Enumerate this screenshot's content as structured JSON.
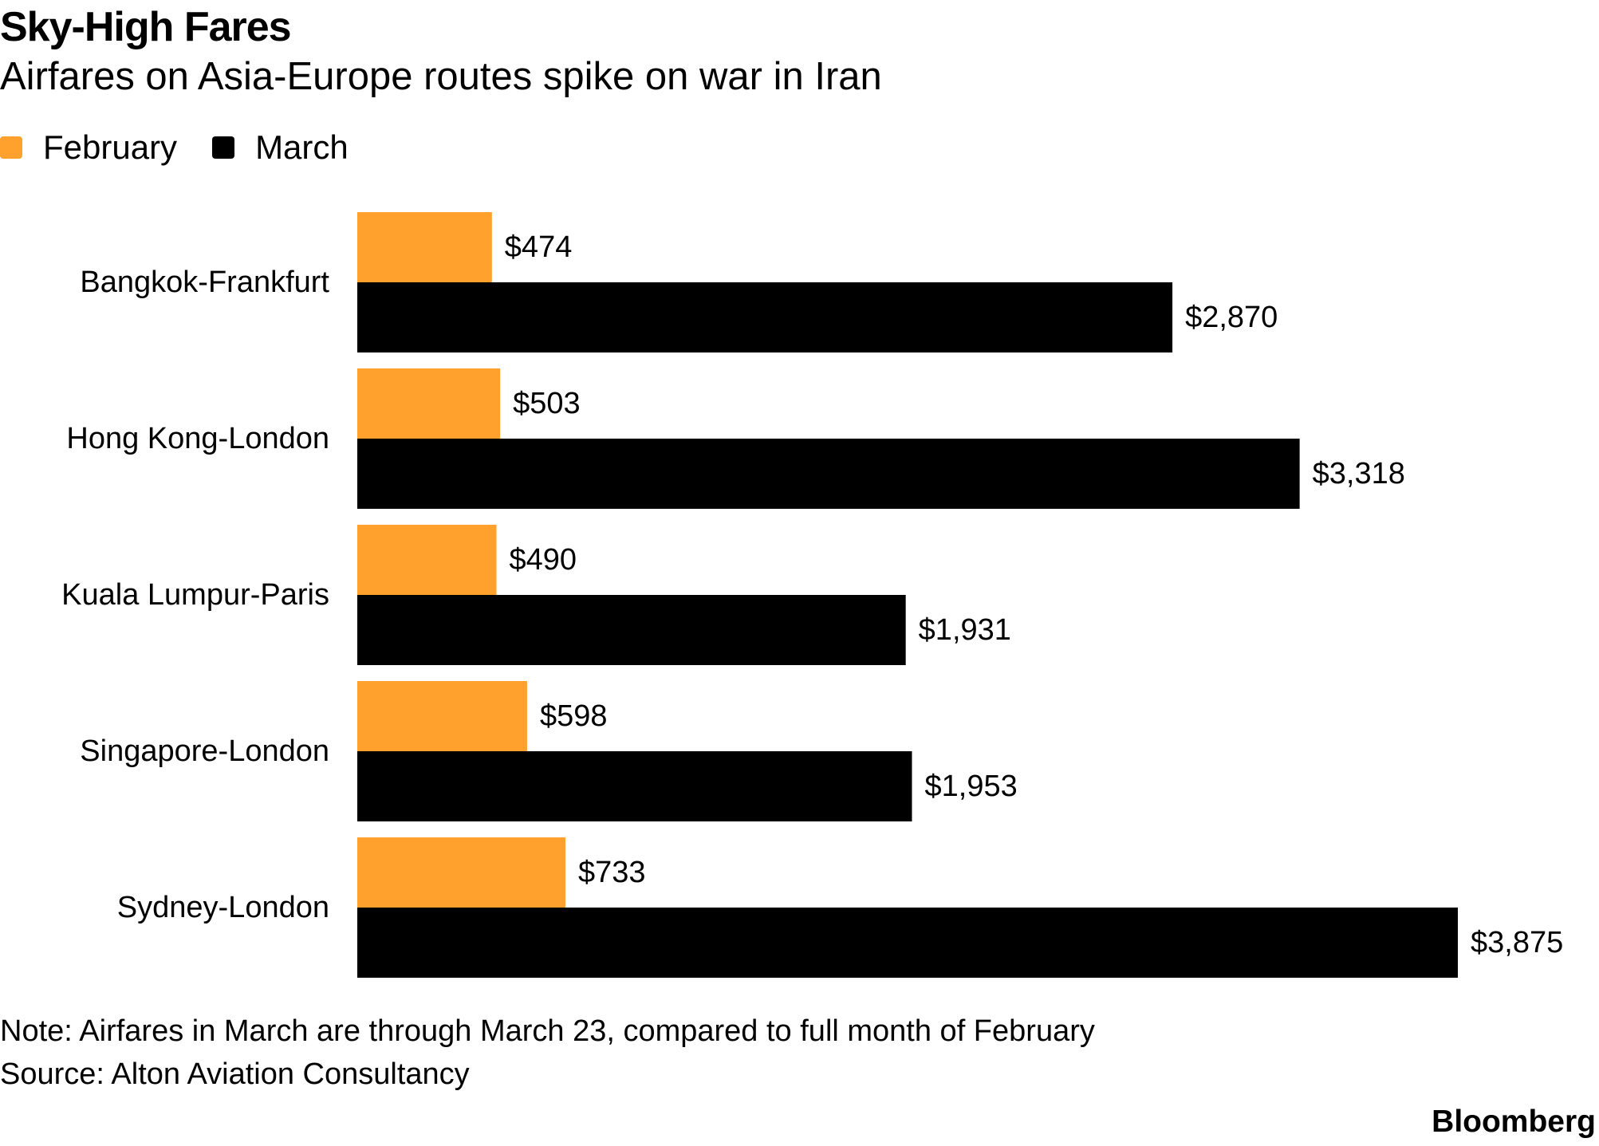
{
  "header": {
    "title": "Sky-High Fares",
    "subtitle": "Airfares on Asia-Europe routes spike on war in Iran"
  },
  "legend": {
    "february": "February",
    "march": "March"
  },
  "colors": {
    "february": "#FFA12C",
    "march": "#000000",
    "text": "#000000",
    "background": "#FFFFFF"
  },
  "chart_data": {
    "type": "bar",
    "orientation": "horizontal",
    "title": "Sky-High Fares",
    "subtitle": "Airfares on Asia-Europe routes spike on war in Iran",
    "categories": [
      "Bangkok-Frankfurt",
      "Hong Kong-London",
      "Kuala Lumpur-Paris",
      "Singapore-London",
      "Sydney-London"
    ],
    "series": [
      {
        "name": "February",
        "values": [
          474,
          503,
          490,
          598,
          733
        ],
        "labels": [
          "$474",
          "$503",
          "$490",
          "$598",
          "$733"
        ]
      },
      {
        "name": "March",
        "values": [
          2870,
          3318,
          1931,
          1953,
          3875
        ],
        "labels": [
          "$2,870",
          "$3,318",
          "$1,931",
          "$1,953",
          "$3,875"
        ]
      }
    ],
    "xlim": [
      0,
      3875
    ],
    "grid": false,
    "legend_position": "top-left",
    "xlabel": "",
    "ylabel": ""
  },
  "footer": {
    "note": "Note: Airfares in March are through March 23, compared to full month of February",
    "source": "Source: Alton Aviation Consultancy",
    "brand": "Bloomberg"
  }
}
